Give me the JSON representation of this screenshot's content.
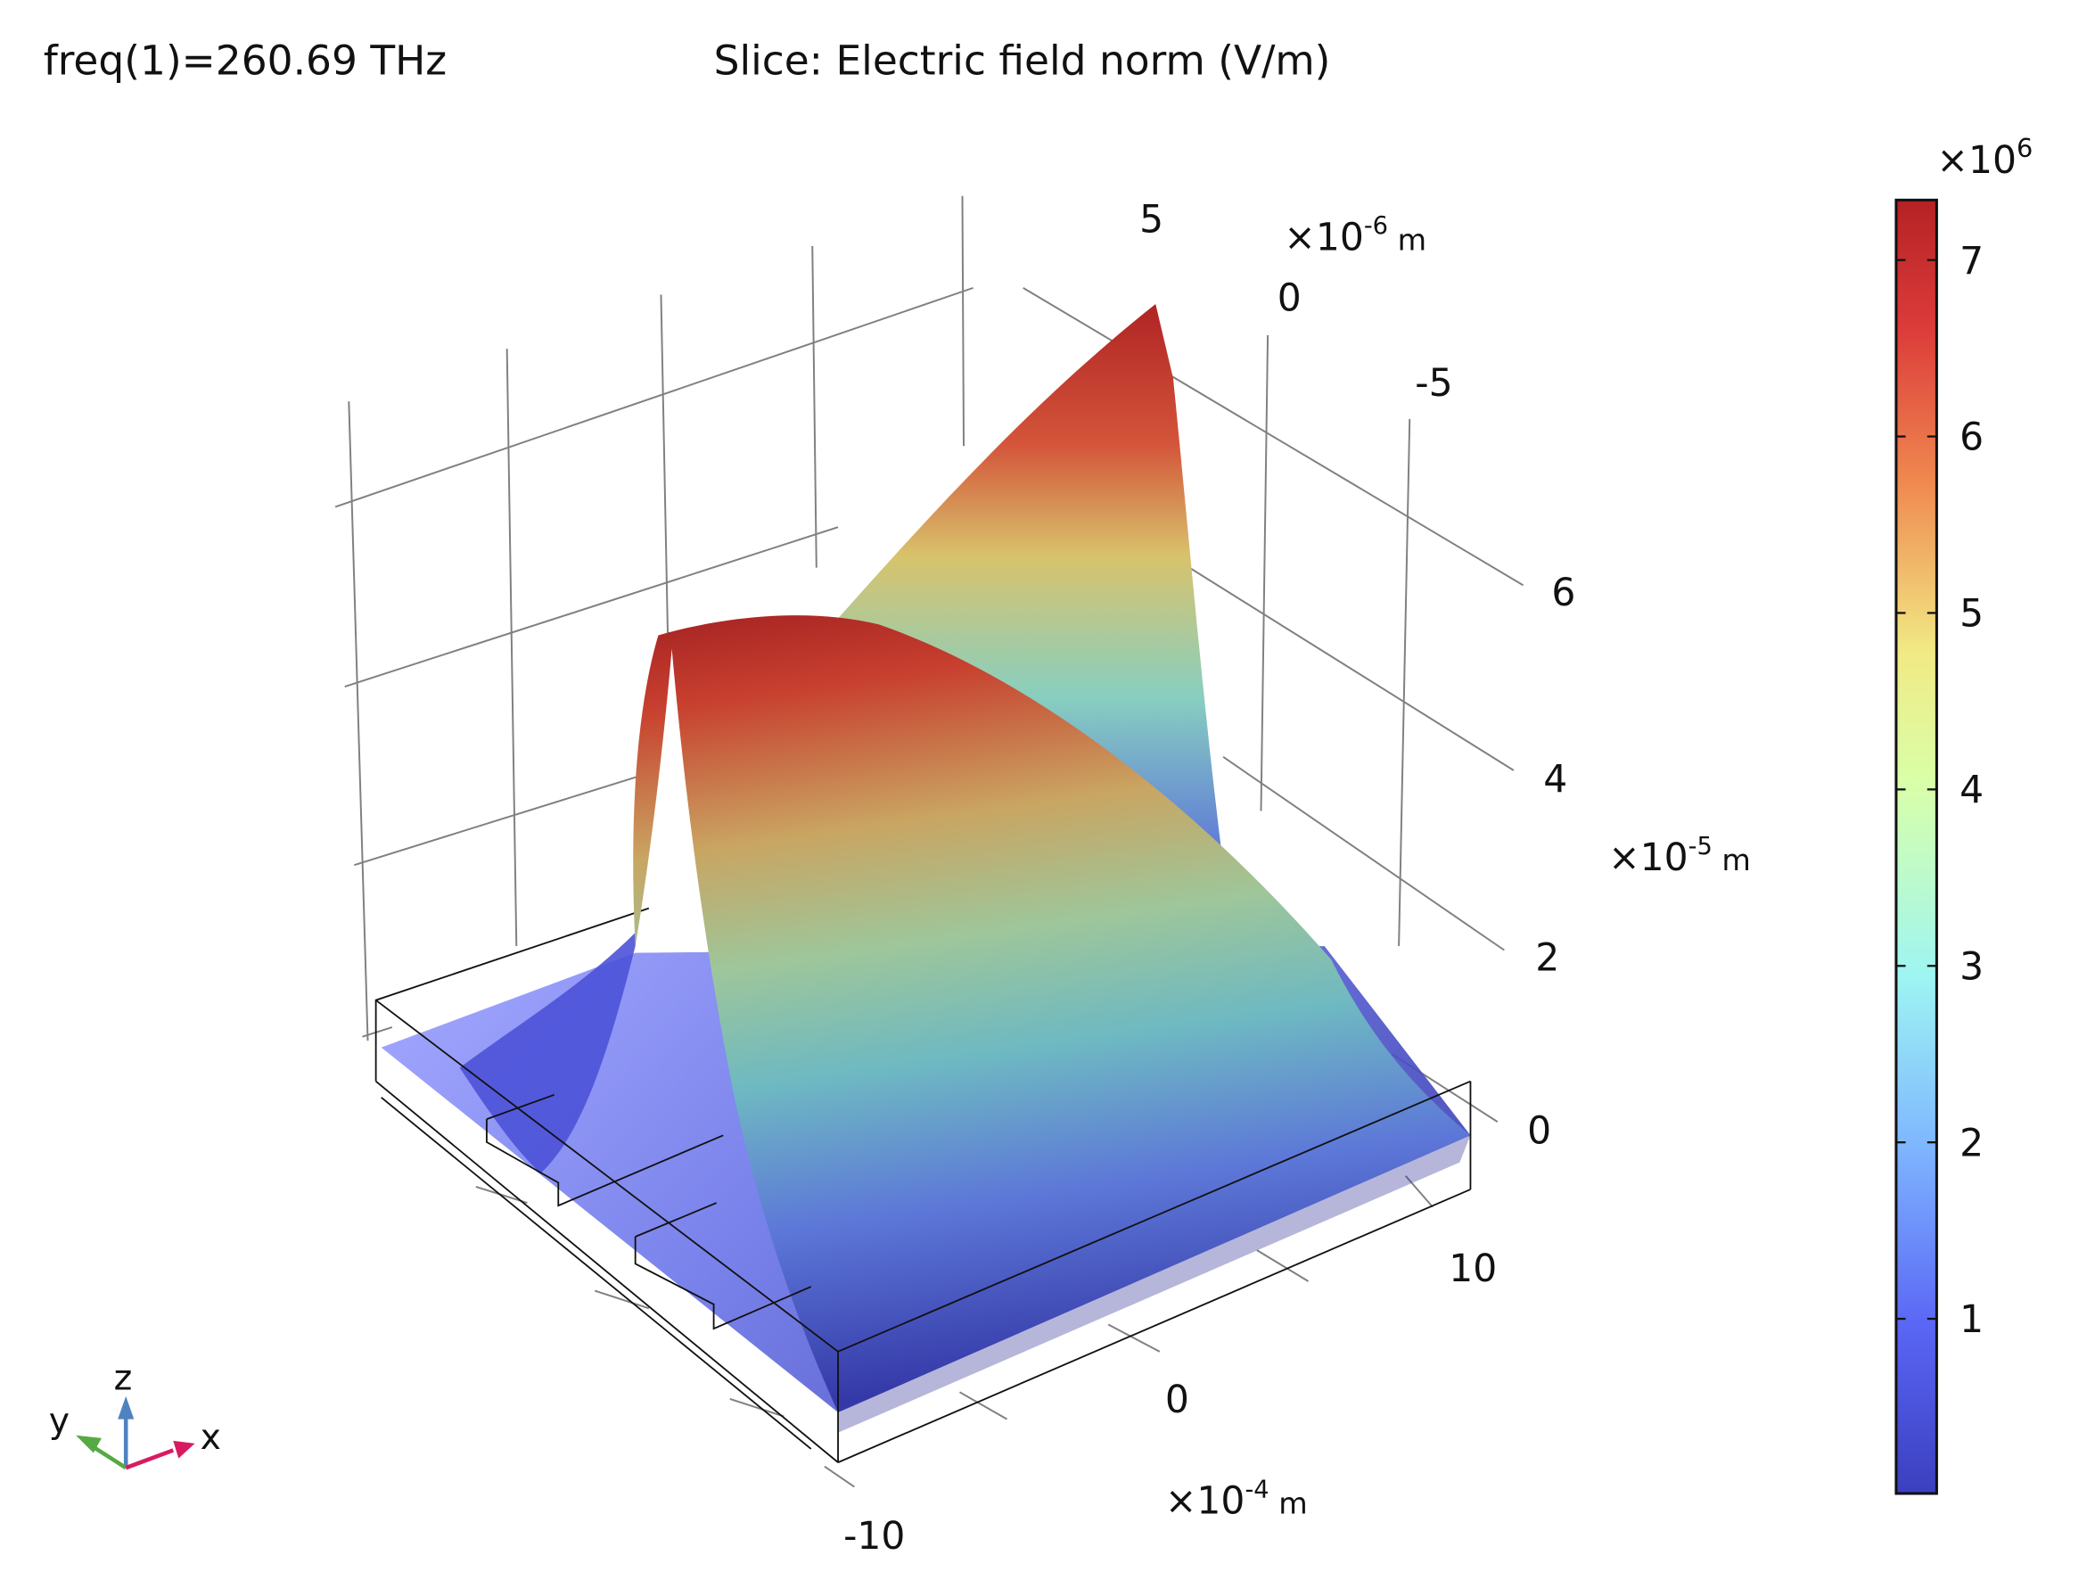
{
  "header": {
    "parameter": "freq(1)=260.69 THz",
    "title": "Slice: Electric field norm (V/m)"
  },
  "chart_data": {
    "type": "surface3d",
    "title": "Slice: Electric field norm (V/m)",
    "parameter": "freq(1)=260.69 THz",
    "x_axis": {
      "ticks": [
        "-10",
        "0",
        "10"
      ],
      "unit": "×10",
      "exp": "-4",
      "suffix": " m"
    },
    "y_axis": {
      "ticks": [
        "5",
        "0",
        "-5"
      ],
      "unit": "×10",
      "exp": "-6",
      "suffix": " m"
    },
    "z_axis": {
      "ticks": [
        "6",
        "4",
        "2",
        "0"
      ],
      "unit": "×10",
      "exp": "-5",
      "suffix": " m"
    },
    "colorbar": {
      "label_prefix": "×10",
      "exp": "6",
      "ticks": [
        "7",
        "6",
        "5",
        "4",
        "3",
        "2",
        "1"
      ],
      "tick_values": [
        7,
        6,
        5,
        4,
        3,
        2,
        1
      ],
      "range": [
        0.01,
        7.34
      ],
      "colors": [
        "#3b3fbf",
        "#5a66f5",
        "#7fd0ff",
        "#a4fbec",
        "#d9ffa8",
        "#f3e27a",
        "#f08a50",
        "#d83a38",
        "#b52224"
      ]
    },
    "peak_value": 7.3
  },
  "triad": {
    "x": "x",
    "y": "y",
    "z": "z",
    "x_color": "#d81b60",
    "y_color": "#55aa44",
    "z_color": "#4f83c0"
  }
}
